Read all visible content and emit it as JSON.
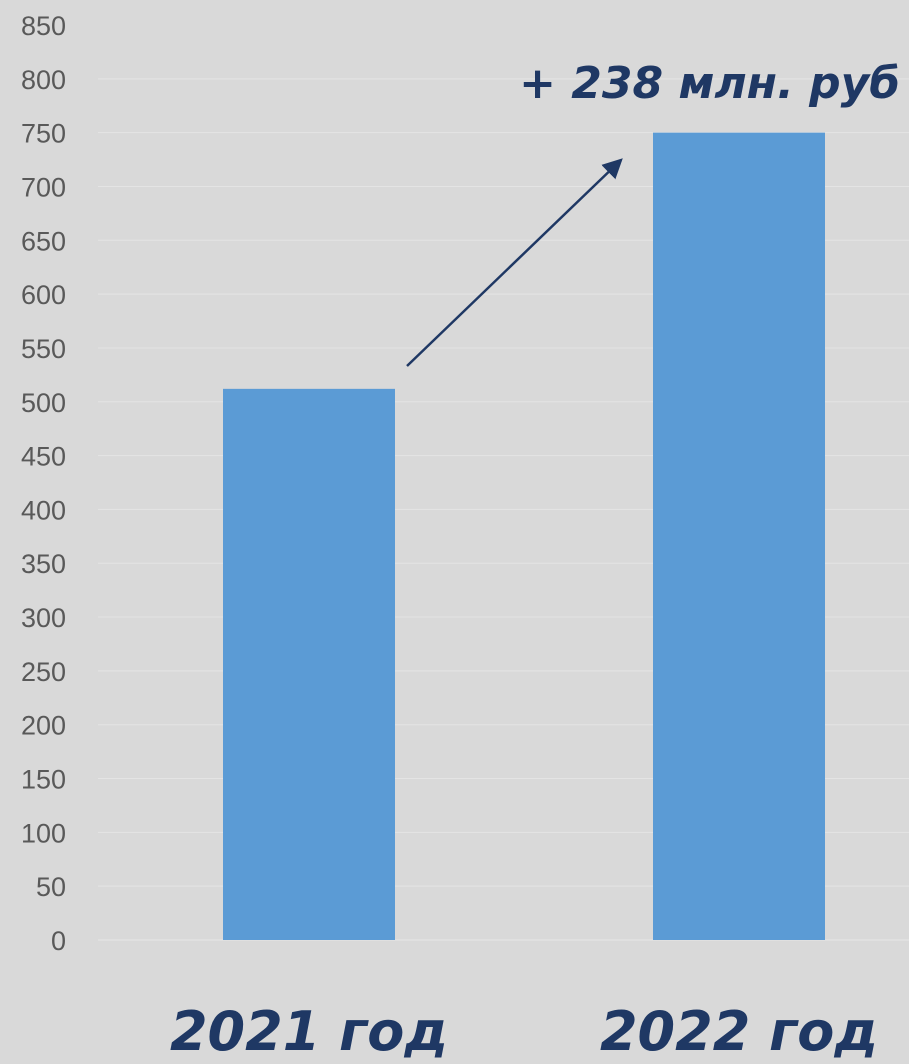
{
  "chart_data": {
    "type": "bar",
    "categories": [
      "2021 год",
      "2022 год"
    ],
    "values": [
      512,
      750
    ],
    "ylim": [
      0,
      850
    ],
    "yticks": [
      0,
      50,
      100,
      150,
      200,
      250,
      300,
      350,
      400,
      450,
      500,
      550,
      600,
      650,
      700,
      750,
      800,
      850
    ],
    "grid": true,
    "annotation": "+ 238 млн. руб",
    "colors": {
      "bar": "#5b9bd5",
      "text": "#1f3864",
      "background": "#d9d9d9",
      "grid": "#e4e4e4",
      "tick": "#595959"
    }
  }
}
